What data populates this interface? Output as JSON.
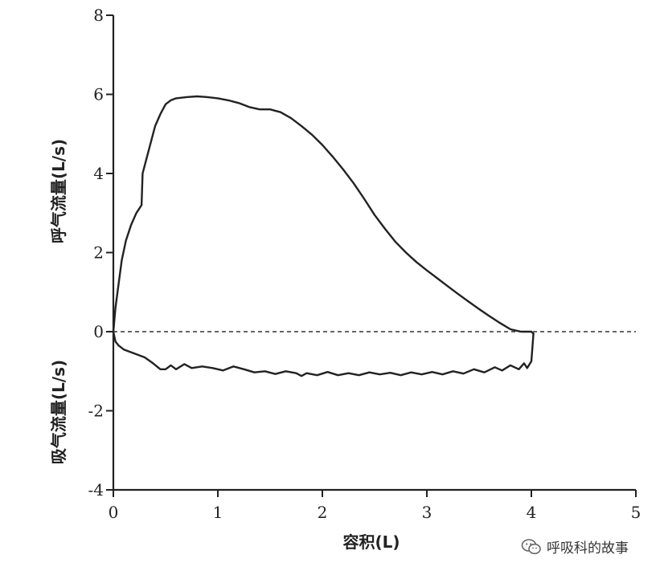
{
  "chart_data": {
    "type": "line",
    "xlabel": "容积(L)",
    "ylabel_upper": "呼气流量(L/s)",
    "ylabel_lower": "吸气流量(L/s)",
    "xlim": [
      0,
      5
    ],
    "ylim": [
      -4,
      8
    ],
    "x_ticks": [
      0,
      1,
      2,
      3,
      4,
      5
    ],
    "y_ticks": [
      -4,
      -2,
      0,
      2,
      4,
      6,
      8
    ],
    "x_tick_labels": [
      "0",
      "1",
      "2",
      "3",
      "4",
      "5"
    ],
    "y_tick_labels": [
      "-4",
      "-2",
      "0",
      "2",
      "4",
      "6",
      "8"
    ],
    "grid": false,
    "zero_line": {
      "y": 0,
      "style": "dashed",
      "x_range": [
        0,
        5
      ]
    },
    "series": [
      {
        "x": [
          0,
          0.02,
          0.05,
          0.08,
          0.12,
          0.17,
          0.22,
          0.27,
          0.28,
          0.31,
          0.35,
          0.4,
          0.45,
          0.5,
          0.55,
          0.6,
          0.7,
          0.8,
          0.9,
          1.0,
          1.1,
          1.2,
          1.3,
          1.4,
          1.5,
          1.6,
          1.7,
          1.8,
          1.9,
          2.0,
          2.1,
          2.2,
          2.3,
          2.4,
          2.5,
          2.6,
          2.7,
          2.8,
          2.9,
          3.0,
          3.1,
          3.2,
          3.3,
          3.4,
          3.5,
          3.6,
          3.7,
          3.8,
          3.9,
          4.0,
          4.02
        ],
        "y": [
          0,
          0.6,
          1.2,
          1.8,
          2.3,
          2.7,
          3.0,
          3.2,
          4.0,
          4.3,
          4.7,
          5.2,
          5.5,
          5.75,
          5.85,
          5.9,
          5.93,
          5.95,
          5.93,
          5.9,
          5.85,
          5.78,
          5.68,
          5.62,
          5.62,
          5.55,
          5.4,
          5.2,
          4.98,
          4.72,
          4.42,
          4.1,
          3.75,
          3.36,
          2.95,
          2.6,
          2.27,
          2.0,
          1.76,
          1.55,
          1.35,
          1.15,
          0.95,
          0.76,
          0.57,
          0.39,
          0.22,
          0.06,
          0.0,
          0.0,
          -0.05
        ]
      },
      {
        "x": [
          0,
          0.02,
          0.05,
          0.1,
          0.2,
          0.3,
          0.38,
          0.45,
          0.5,
          0.55,
          0.6,
          0.68,
          0.75,
          0.85,
          0.95,
          1.05,
          1.15,
          1.25,
          1.35,
          1.45,
          1.55,
          1.65,
          1.75,
          1.8,
          1.85,
          1.95,
          2.05,
          2.15,
          2.25,
          2.35,
          2.45,
          2.55,
          2.65,
          2.75,
          2.85,
          2.95,
          3.05,
          3.15,
          3.25,
          3.35,
          3.45,
          3.55,
          3.65,
          3.72,
          3.8,
          3.88,
          3.93,
          3.96,
          4.0,
          4.02
        ],
        "y": [
          0,
          -0.25,
          -0.35,
          -0.45,
          -0.55,
          -0.65,
          -0.8,
          -0.95,
          -0.95,
          -0.85,
          -0.95,
          -0.82,
          -0.92,
          -0.88,
          -0.92,
          -0.98,
          -0.88,
          -0.95,
          -1.03,
          -1.0,
          -1.07,
          -1.0,
          -1.05,
          -1.12,
          -1.05,
          -1.1,
          -1.02,
          -1.1,
          -1.05,
          -1.1,
          -1.03,
          -1.08,
          -1.04,
          -1.1,
          -1.03,
          -1.08,
          -1.02,
          -1.08,
          -1.0,
          -1.06,
          -0.95,
          -1.03,
          -0.9,
          -0.98,
          -0.85,
          -0.95,
          -0.8,
          -0.92,
          -0.75,
          -0.05
        ]
      }
    ]
  },
  "watermark": {
    "text": "呼吸科的故事",
    "icon": "wechat-icon"
  }
}
